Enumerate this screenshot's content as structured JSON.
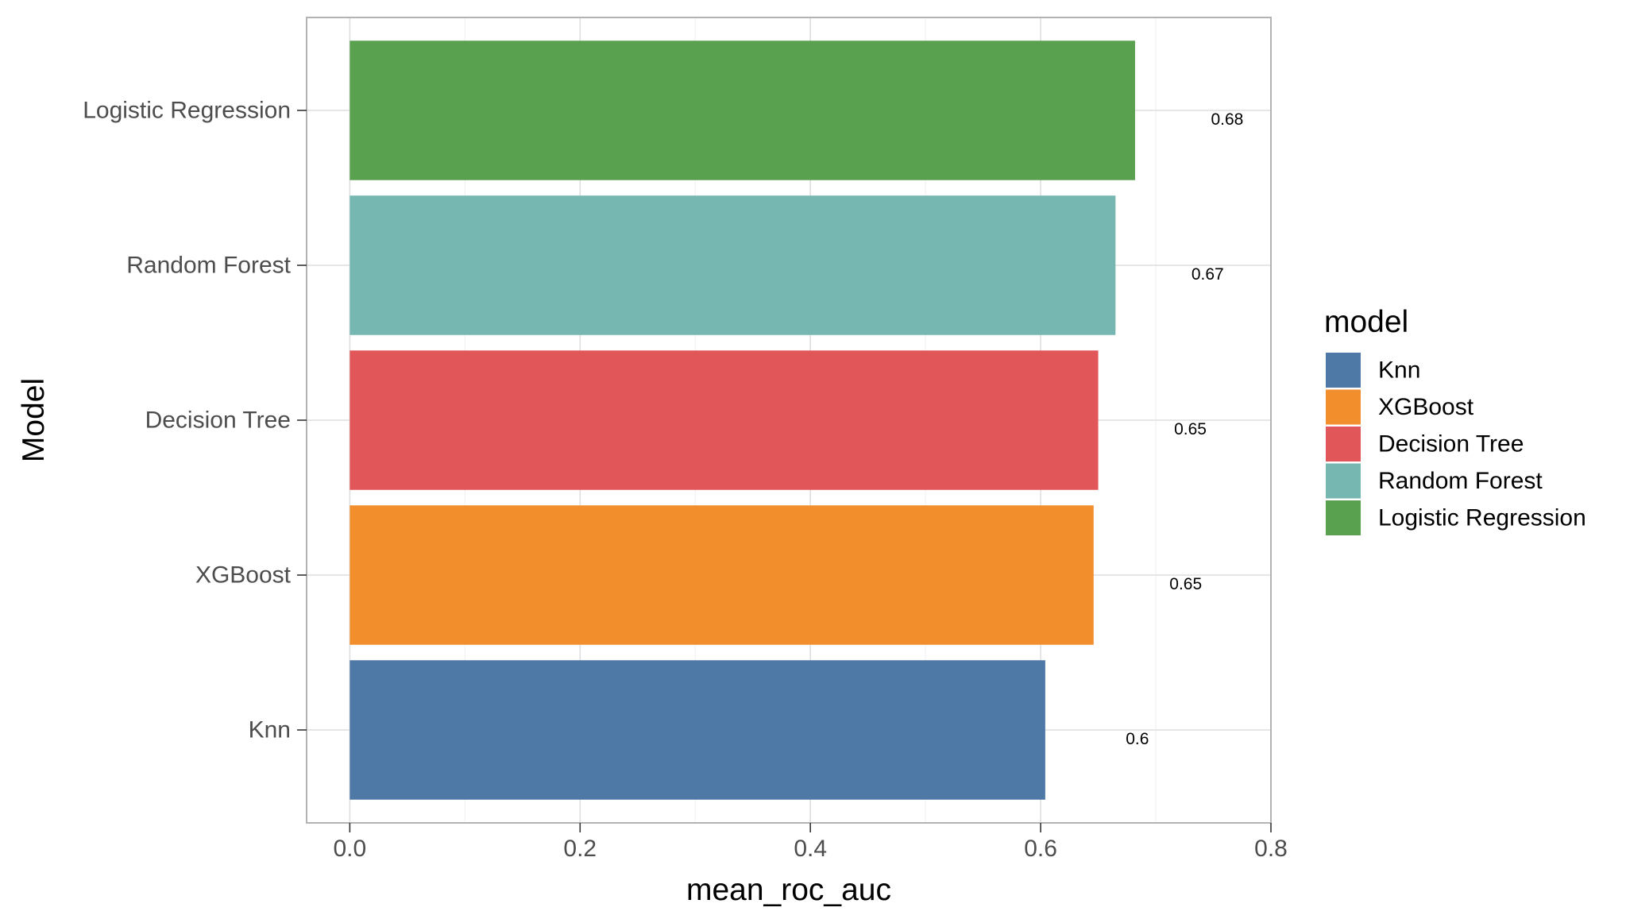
{
  "chart_data": {
    "type": "bar",
    "orientation": "horizontal",
    "categories": [
      "Knn",
      "XGBoost",
      "Decision Tree",
      "Random Forest",
      "Logistic Regression"
    ],
    "values": [
      0.604,
      0.646,
      0.65,
      0.665,
      0.682
    ],
    "data_labels": [
      "0.6",
      "0.65",
      "0.65",
      "0.67",
      "0.68"
    ],
    "colors": [
      "#4e79a7",
      "#f28e2b",
      "#e15759",
      "#76b7b2",
      "#59a14f"
    ],
    "xlabel": "mean_roc_auc",
    "ylabel": "Model",
    "xlim": [
      -0.0375,
      0.8
    ],
    "xticks": [
      0.0,
      0.2,
      0.4,
      0.6,
      0.8
    ],
    "xtick_labels": [
      "0.0",
      "0.2",
      "0.4",
      "0.6",
      "0.8"
    ],
    "grid": true,
    "legend": {
      "title": "model",
      "position": "right",
      "entries": [
        "Knn",
        "XGBoost",
        "Decision Tree",
        "Random Forest",
        "Logistic Regression"
      ]
    }
  }
}
